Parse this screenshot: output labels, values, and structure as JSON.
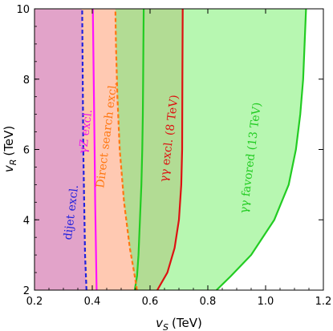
{
  "chart_data": {
    "type": "area",
    "title": "",
    "xlabel": {
      "var": "v",
      "sub": "S",
      "unit": "(TeV)"
    },
    "ylabel": {
      "var": "v",
      "sub": "R",
      "unit": "(TeV)"
    },
    "xlim": [
      0.2,
      1.2
    ],
    "ylim": [
      2,
      10
    ],
    "xticks": [
      "0.2",
      "0.4",
      "0.6",
      "0.8",
      "1.0",
      "1.2"
    ],
    "yticks": [
      "2",
      "4",
      "6",
      "8",
      "10"
    ],
    "x_tick_values": [
      0.2,
      0.4,
      0.6,
      0.8,
      1.0,
      1.2
    ],
    "y_tick_values": [
      2,
      4,
      6,
      8,
      10
    ],
    "grid": false,
    "regions": [
      {
        "name": "fav13",
        "fill": "#b7f7b1",
        "stroke": "#22cc22",
        "left": [
          [
            0.547,
            2
          ],
          [
            0.555,
            2.4
          ],
          [
            0.56,
            3
          ],
          [
            0.565,
            4
          ],
          [
            0.57,
            5
          ],
          [
            0.573,
            6
          ],
          [
            0.575,
            7
          ],
          [
            0.576,
            8
          ],
          [
            0.577,
            9
          ],
          [
            0.578,
            10
          ]
        ],
        "right": [
          [
            0.83,
            2
          ],
          [
            0.88,
            2.4
          ],
          [
            0.95,
            3
          ],
          [
            1.03,
            4
          ],
          [
            1.08,
            5
          ],
          [
            1.105,
            6
          ],
          [
            1.12,
            7
          ],
          [
            1.13,
            8
          ],
          [
            1.135,
            9
          ],
          [
            1.14,
            10
          ]
        ]
      },
      {
        "name": "excl8",
        "fill": "#b2dc94",
        "stroke": "#dd1111",
        "left": [
          [
            0.2,
            2
          ],
          [
            0.2,
            10
          ]
        ],
        "right": [
          [
            0.625,
            2
          ],
          [
            0.66,
            2.5
          ],
          [
            0.685,
            3.2
          ],
          [
            0.7,
            4
          ],
          [
            0.708,
            5
          ],
          [
            0.711,
            6
          ],
          [
            0.712,
            8
          ],
          [
            0.713,
            10
          ]
        ]
      },
      {
        "name": "direct",
        "fill": "#ffc9b2",
        "stroke": "#ff7711",
        "dashed": true,
        "left": [
          [
            0.2,
            2
          ],
          [
            0.2,
            10
          ]
        ],
        "right": [
          [
            0.555,
            2
          ],
          [
            0.545,
            2.5
          ],
          [
            0.53,
            3.2
          ],
          [
            0.51,
            4.5
          ],
          [
            0.495,
            6
          ],
          [
            0.487,
            7.5
          ],
          [
            0.482,
            9
          ],
          [
            0.48,
            10
          ]
        ]
      },
      {
        "name": "gammaZ",
        "fill": "#ffc7aa",
        "stroke": "#ff11ff",
        "left": [
          [
            0.2,
            2
          ],
          [
            0.2,
            10
          ]
        ],
        "right": [
          [
            0.415,
            2
          ],
          [
            0.413,
            3
          ],
          [
            0.41,
            4.5
          ],
          [
            0.408,
            6
          ],
          [
            0.405,
            8
          ],
          [
            0.402,
            10
          ]
        ]
      },
      {
        "name": "dijet",
        "fill": "#e2a3c9",
        "stroke": "#2222dd",
        "dashed": true,
        "left": [
          [
            0.2,
            2
          ],
          [
            0.2,
            10
          ]
        ],
        "right": [
          [
            0.38,
            2
          ],
          [
            0.375,
            3
          ],
          [
            0.372,
            4.5
          ],
          [
            0.369,
            6
          ],
          [
            0.367,
            8
          ],
          [
            0.365,
            10
          ]
        ]
      }
    ],
    "background_fill": {
      "fill": "#ffe2e2",
      "x_range": [
        0.2,
        0.578
      ]
    },
    "annotations": [
      {
        "text": "dijet excl.",
        "color": "#2222dd",
        "x": 0.339,
        "y": 4.2
      },
      {
        "text": "γZ excl.",
        "color": "#ee11ee",
        "x": 0.389,
        "y": 6.5
      },
      {
        "text": "Direct search excl.",
        "color": "#ff7711",
        "x": 0.462,
        "y": 6.4
      },
      {
        "text": "γγ excl. (8 TeV)",
        "color": "#dd1111",
        "x": 0.678,
        "y": 6.3
      },
      {
        "text": "γγ favored (13 TeV)",
        "color": "#22cc22",
        "x": 0.96,
        "y": 5.75
      }
    ]
  }
}
